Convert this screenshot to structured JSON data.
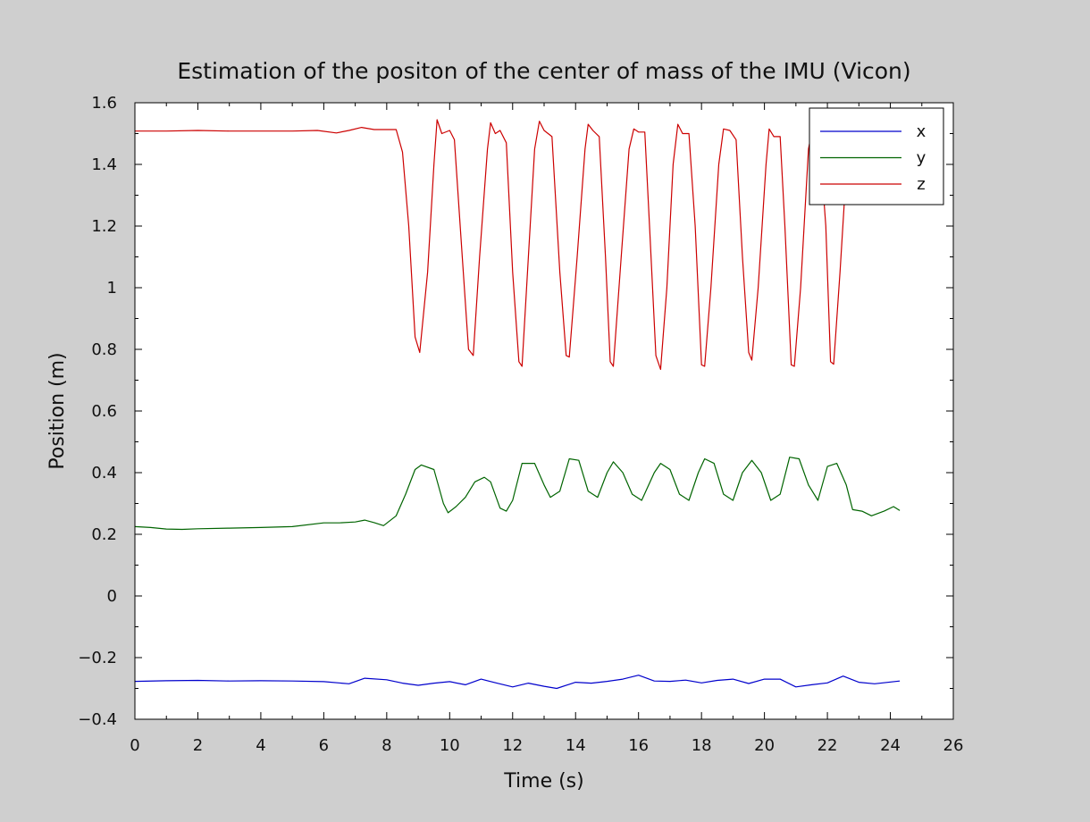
{
  "chart_data": {
    "type": "line",
    "title": "Estimation of the positon of the center of mass of the IMU (Vicon)",
    "xlabel": "Time (s)",
    "ylabel": "Position (m)",
    "xlim": [
      0,
      26
    ],
    "ylim": [
      -0.4,
      1.6
    ],
    "xticks": [
      0,
      2,
      4,
      6,
      8,
      10,
      12,
      14,
      16,
      18,
      20,
      22,
      24,
      26
    ],
    "yticks": [
      -0.4,
      -0.2,
      0,
      0.2,
      0.4,
      0.6,
      0.8,
      1,
      1.2,
      1.4,
      1.6
    ],
    "ytick_labels": [
      "−0.4",
      "−0.2",
      "0",
      "0.2",
      "0.4",
      "0.6",
      "0.8",
      "1",
      "1.2",
      "1.4",
      "1.6"
    ],
    "grid": false,
    "legend_position": "top-right",
    "series": [
      {
        "name": "x",
        "color": "#0000cc",
        "points": [
          [
            0,
            -0.277
          ],
          [
            1,
            -0.275
          ],
          [
            2,
            -0.274
          ],
          [
            3,
            -0.276
          ],
          [
            4,
            -0.275
          ],
          [
            5,
            -0.276
          ],
          [
            6,
            -0.278
          ],
          [
            6.8,
            -0.285
          ],
          [
            7.3,
            -0.267
          ],
          [
            8,
            -0.272
          ],
          [
            8.5,
            -0.283
          ],
          [
            9,
            -0.29
          ],
          [
            9.5,
            -0.283
          ],
          [
            10,
            -0.278
          ],
          [
            10.5,
            -0.288
          ],
          [
            11,
            -0.27
          ],
          [
            11.5,
            -0.283
          ],
          [
            12,
            -0.295
          ],
          [
            12.5,
            -0.283
          ],
          [
            13,
            -0.293
          ],
          [
            13.4,
            -0.3
          ],
          [
            14,
            -0.28
          ],
          [
            14.5,
            -0.283
          ],
          [
            15,
            -0.277
          ],
          [
            15.5,
            -0.27
          ],
          [
            16,
            -0.257
          ],
          [
            16.5,
            -0.276
          ],
          [
            17,
            -0.277
          ],
          [
            17.5,
            -0.273
          ],
          [
            18,
            -0.282
          ],
          [
            18.5,
            -0.274
          ],
          [
            19,
            -0.27
          ],
          [
            19.5,
            -0.284
          ],
          [
            20,
            -0.27
          ],
          [
            20.5,
            -0.27
          ],
          [
            21,
            -0.295
          ],
          [
            21.5,
            -0.288
          ],
          [
            22,
            -0.282
          ],
          [
            22.5,
            -0.26
          ],
          [
            23,
            -0.28
          ],
          [
            23.5,
            -0.285
          ],
          [
            24.3,
            -0.276
          ]
        ]
      },
      {
        "name": "y",
        "color": "#006400",
        "points": [
          [
            0,
            0.225
          ],
          [
            0.5,
            0.222
          ],
          [
            1,
            0.217
          ],
          [
            1.5,
            0.216
          ],
          [
            2,
            0.218
          ],
          [
            3,
            0.22
          ],
          [
            4,
            0.222
          ],
          [
            5,
            0.225
          ],
          [
            6,
            0.237
          ],
          [
            6.5,
            0.237
          ],
          [
            7,
            0.24
          ],
          [
            7.3,
            0.246
          ],
          [
            7.6,
            0.238
          ],
          [
            7.9,
            0.228
          ],
          [
            8.3,
            0.26
          ],
          [
            8.6,
            0.33
          ],
          [
            8.9,
            0.41
          ],
          [
            9.1,
            0.425
          ],
          [
            9.5,
            0.41
          ],
          [
            9.8,
            0.3
          ],
          [
            9.95,
            0.27
          ],
          [
            10.2,
            0.29
          ],
          [
            10.5,
            0.32
          ],
          [
            10.8,
            0.37
          ],
          [
            11.1,
            0.385
          ],
          [
            11.3,
            0.37
          ],
          [
            11.6,
            0.285
          ],
          [
            11.8,
            0.275
          ],
          [
            12,
            0.31
          ],
          [
            12.3,
            0.43
          ],
          [
            12.7,
            0.43
          ],
          [
            13,
            0.36
          ],
          [
            13.2,
            0.32
          ],
          [
            13.5,
            0.34
          ],
          [
            13.8,
            0.445
          ],
          [
            14.1,
            0.44
          ],
          [
            14.4,
            0.34
          ],
          [
            14.7,
            0.32
          ],
          [
            15,
            0.4
          ],
          [
            15.2,
            0.435
          ],
          [
            15.5,
            0.4
          ],
          [
            15.8,
            0.33
          ],
          [
            16.1,
            0.31
          ],
          [
            16.5,
            0.4
          ],
          [
            16.7,
            0.43
          ],
          [
            17,
            0.41
          ],
          [
            17.3,
            0.33
          ],
          [
            17.6,
            0.31
          ],
          [
            17.9,
            0.4
          ],
          [
            18.1,
            0.445
          ],
          [
            18.4,
            0.43
          ],
          [
            18.7,
            0.33
          ],
          [
            19,
            0.31
          ],
          [
            19.3,
            0.4
          ],
          [
            19.6,
            0.44
          ],
          [
            19.9,
            0.4
          ],
          [
            20.2,
            0.31
          ],
          [
            20.5,
            0.33
          ],
          [
            20.8,
            0.45
          ],
          [
            21.1,
            0.445
          ],
          [
            21.4,
            0.36
          ],
          [
            21.7,
            0.31
          ],
          [
            22,
            0.42
          ],
          [
            22.3,
            0.43
          ],
          [
            22.6,
            0.36
          ],
          [
            22.8,
            0.28
          ],
          [
            23.1,
            0.275
          ],
          [
            23.4,
            0.26
          ],
          [
            23.8,
            0.275
          ],
          [
            24.1,
            0.29
          ],
          [
            24.3,
            0.277
          ]
        ]
      },
      {
        "name": "z",
        "color": "#cc0000",
        "points": [
          [
            0,
            1.508
          ],
          [
            1,
            1.508
          ],
          [
            2,
            1.51
          ],
          [
            3,
            1.508
          ],
          [
            4,
            1.508
          ],
          [
            5,
            1.508
          ],
          [
            5.8,
            1.51
          ],
          [
            6.4,
            1.502
          ],
          [
            6.8,
            1.51
          ],
          [
            7.2,
            1.52
          ],
          [
            7.6,
            1.513
          ],
          [
            8.3,
            1.513
          ],
          [
            8.5,
            1.44
          ],
          [
            8.7,
            1.2
          ],
          [
            8.9,
            0.84
          ],
          [
            9.05,
            0.79
          ],
          [
            9.3,
            1.05
          ],
          [
            9.5,
            1.4
          ],
          [
            9.6,
            1.545
          ],
          [
            9.75,
            1.5
          ],
          [
            10,
            1.51
          ],
          [
            10.15,
            1.48
          ],
          [
            10.4,
            1.1
          ],
          [
            10.6,
            0.8
          ],
          [
            10.75,
            0.78
          ],
          [
            10.95,
            1.1
          ],
          [
            11.2,
            1.45
          ],
          [
            11.3,
            1.535
          ],
          [
            11.45,
            1.5
          ],
          [
            11.6,
            1.51
          ],
          [
            11.8,
            1.47
          ],
          [
            12,
            1.05
          ],
          [
            12.2,
            0.76
          ],
          [
            12.3,
            0.745
          ],
          [
            12.5,
            1.1
          ],
          [
            12.7,
            1.45
          ],
          [
            12.85,
            1.54
          ],
          [
            13,
            1.51
          ],
          [
            13.25,
            1.49
          ],
          [
            13.5,
            1.05
          ],
          [
            13.7,
            0.78
          ],
          [
            13.8,
            0.775
          ],
          [
            14.05,
            1.1
          ],
          [
            14.3,
            1.45
          ],
          [
            14.4,
            1.53
          ],
          [
            14.55,
            1.51
          ],
          [
            14.75,
            1.49
          ],
          [
            14.95,
            1.1
          ],
          [
            15.1,
            0.76
          ],
          [
            15.2,
            0.745
          ],
          [
            15.45,
            1.1
          ],
          [
            15.7,
            1.45
          ],
          [
            15.85,
            1.515
          ],
          [
            16,
            1.505
          ],
          [
            16.2,
            1.505
          ],
          [
            16.35,
            1.2
          ],
          [
            16.55,
            0.78
          ],
          [
            16.7,
            0.735
          ],
          [
            16.9,
            1.0
          ],
          [
            17.1,
            1.4
          ],
          [
            17.25,
            1.53
          ],
          [
            17.4,
            1.5
          ],
          [
            17.6,
            1.5
          ],
          [
            17.8,
            1.2
          ],
          [
            18.0,
            0.75
          ],
          [
            18.1,
            0.745
          ],
          [
            18.3,
            1.0
          ],
          [
            18.55,
            1.4
          ],
          [
            18.7,
            1.515
          ],
          [
            18.9,
            1.51
          ],
          [
            19.1,
            1.48
          ],
          [
            19.3,
            1.1
          ],
          [
            19.5,
            0.79
          ],
          [
            19.6,
            0.765
          ],
          [
            19.8,
            1.0
          ],
          [
            20.05,
            1.4
          ],
          [
            20.15,
            1.515
          ],
          [
            20.3,
            1.49
          ],
          [
            20.5,
            1.49
          ],
          [
            20.65,
            1.2
          ],
          [
            20.85,
            0.75
          ],
          [
            20.95,
            0.745
          ],
          [
            21.15,
            1.0
          ],
          [
            21.4,
            1.45
          ],
          [
            21.55,
            1.53
          ],
          [
            21.75,
            1.48
          ],
          [
            21.95,
            1.2
          ],
          [
            22.1,
            0.76
          ],
          [
            22.2,
            0.752
          ],
          [
            22.4,
            1.05
          ],
          [
            22.55,
            1.3
          ]
        ]
      }
    ]
  }
}
